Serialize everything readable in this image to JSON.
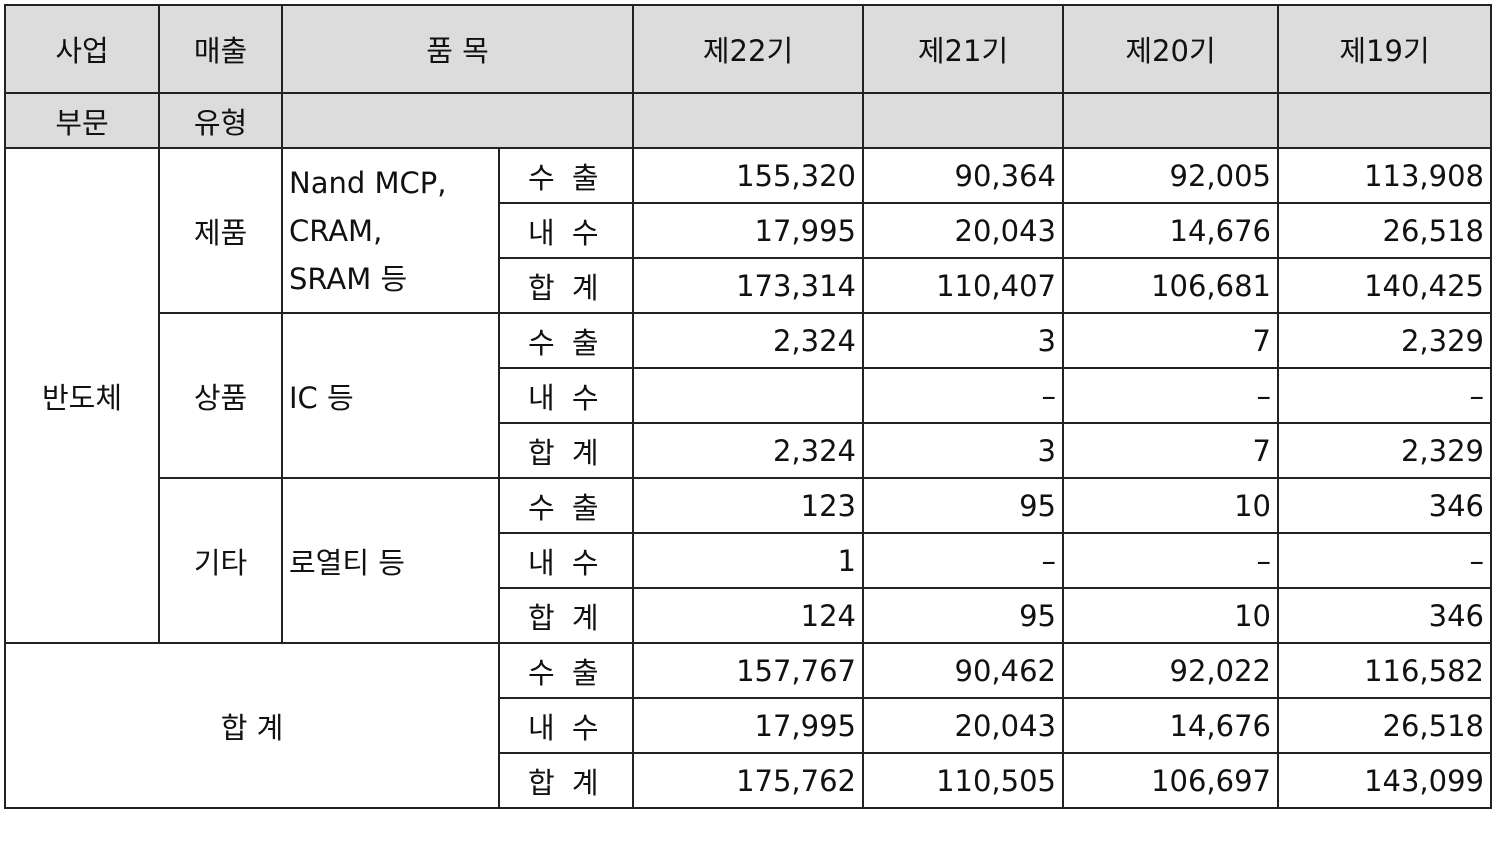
{
  "header": {
    "business": "사업",
    "sales": "매출",
    "item": "품 목",
    "periods": [
      "제22기",
      "제21기",
      "제20기",
      "제19기"
    ],
    "business2": "부문",
    "sales2": "유형"
  },
  "segment": "반도체",
  "groups": [
    {
      "type": "제품",
      "item_lines": [
        "Nand MCP,",
        "CRAM,",
        "SRAM 등"
      ],
      "rows": [
        {
          "kind": "수 출",
          "values": [
            "155,320",
            "90,364",
            "92,005",
            "113,908"
          ]
        },
        {
          "kind": "내 수",
          "values": [
            "17,995",
            "20,043",
            "14,676",
            "26,518"
          ]
        },
        {
          "kind": "합 계",
          "values": [
            "173,314",
            "110,407",
            "106,681",
            "140,425"
          ]
        }
      ]
    },
    {
      "type": "상품",
      "item_lines": [
        "IC 등"
      ],
      "rows": [
        {
          "kind": "수 출",
          "values": [
            "2,324",
            "3",
            "7",
            "2,329"
          ]
        },
        {
          "kind": "내 수",
          "values": [
            "",
            "–",
            "–",
            "–"
          ]
        },
        {
          "kind": "합 계",
          "values": [
            "2,324",
            "3",
            "7",
            "2,329"
          ]
        }
      ]
    },
    {
      "type": "기타",
      "item_lines": [
        "로열티 등"
      ],
      "rows": [
        {
          "kind": "수 출",
          "values": [
            "123",
            "95",
            "10",
            "346"
          ]
        },
        {
          "kind": "내 수",
          "values": [
            "1",
            "–",
            "–",
            "–"
          ]
        },
        {
          "kind": "합 계",
          "values": [
            "124",
            "95",
            "10",
            "346"
          ]
        }
      ]
    }
  ],
  "total": {
    "label": "합 계",
    "rows": [
      {
        "kind": "수 출",
        "values": [
          "157,767",
          "90,462",
          "92,022",
          "116,582"
        ]
      },
      {
        "kind": "내 수",
        "values": [
          "17,995",
          "20,043",
          "14,676",
          "26,518"
        ]
      },
      {
        "kind": "합 계",
        "values": [
          "175,762",
          "110,505",
          "106,697",
          "143,099"
        ]
      }
    ]
  },
  "colors": {
    "header_bg": "#dcdcdc",
    "border": "#222222"
  }
}
